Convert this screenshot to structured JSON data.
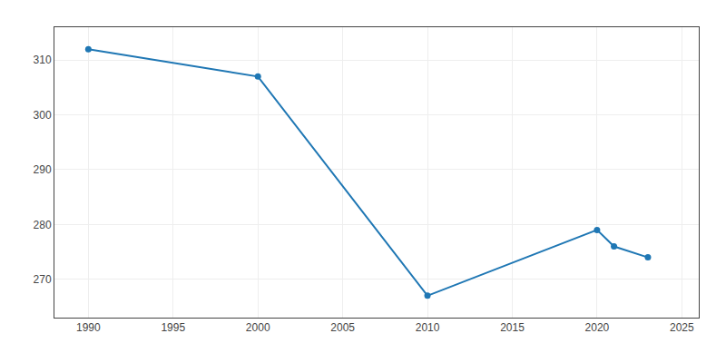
{
  "chart_data": {
    "type": "line",
    "x": [
      1990,
      2000,
      2010,
      2020,
      2021,
      2023
    ],
    "values": [
      312,
      307,
      267,
      279,
      276,
      274
    ],
    "marker": "circle",
    "xlim": [
      1988,
      2026
    ],
    "xticks": [
      1990,
      1995,
      2000,
      2005,
      2010,
      2015,
      2020,
      2025
    ],
    "ylim": [
      263,
      316
    ],
    "yticks": [
      270,
      280,
      290,
      300,
      310
    ],
    "grid": true
  }
}
